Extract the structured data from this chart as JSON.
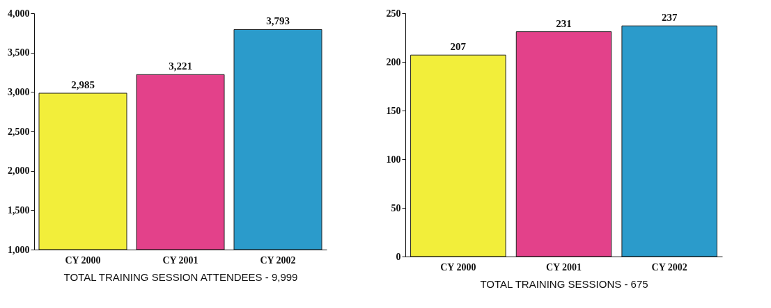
{
  "chart_data": [
    {
      "type": "bar",
      "xlabel": "TOTAL TRAINING SESSION ATTENDEES - 9,999",
      "categories": [
        "CY 2000",
        "CY 2001",
        "CY 2002"
      ],
      "values": [
        2985,
        3221,
        3793
      ],
      "colors": [
        "#f2ee3a",
        "#e3418a",
        "#2b9bcb"
      ],
      "value_labels": [
        "2,985",
        "3,221",
        "3,793"
      ],
      "ylim": [
        1000,
        4000
      ],
      "yticks": [
        {
          "value": 1000,
          "label": "1,000"
        },
        {
          "value": 1500,
          "label": "1,500"
        },
        {
          "value": 2000,
          "label": "2,000"
        },
        {
          "value": 2500,
          "label": "2,500"
        },
        {
          "value": 3000,
          "label": "3,000"
        },
        {
          "value": 3500,
          "label": "3,500"
        },
        {
          "value": 4000,
          "label": "4,000"
        }
      ],
      "grid": false,
      "legend": false
    },
    {
      "type": "bar",
      "xlabel": "TOTAL TRAINING SESSIONS - 675",
      "categories": [
        "CY 2000",
        "CY 2001",
        "CY 2002"
      ],
      "values": [
        207,
        231,
        237
      ],
      "colors": [
        "#f2ee3a",
        "#e3418a",
        "#2b9bcb"
      ],
      "data_labels": true,
      "ylim": [
        0,
        250
      ],
      "yticks": [
        0,
        50,
        100,
        150,
        200,
        250
      ],
      "grid": false,
      "legend": false
    }
  ]
}
